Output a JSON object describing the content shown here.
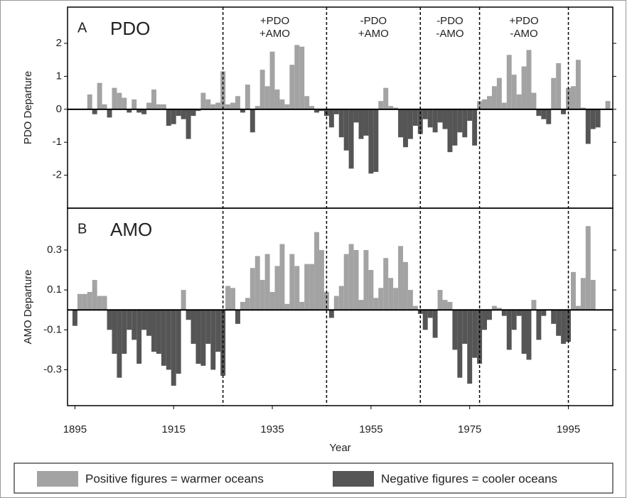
{
  "chart_data": [
    {
      "type": "bar",
      "panel_label": "A",
      "title": "PDO",
      "ylabel": "PDO Departure",
      "x_start": 1898,
      "values": [
        0.45,
        -0.15,
        0.8,
        0.15,
        -0.25,
        0.65,
        0.5,
        0.35,
        -0.1,
        0.3,
        -0.1,
        -0.15,
        0.2,
        0.6,
        0.15,
        0.15,
        -0.5,
        -0.45,
        -0.2,
        -0.3,
        -0.9,
        -0.2,
        -0.05,
        0.5,
        0.3,
        0.15,
        0.2,
        1.15,
        0.15,
        0.2,
        0.4,
        -0.1,
        0.75,
        -0.7,
        0.1,
        1.2,
        0.7,
        1.75,
        0.6,
        0.3,
        0.15,
        1.35,
        1.95,
        1.9,
        0.4,
        0.1,
        -0.1,
        -0.05,
        -0.2,
        -0.55,
        -0.15,
        -0.85,
        -1.25,
        -1.8,
        -0.4,
        -0.9,
        -0.8,
        -1.95,
        -1.9,
        0.25,
        0.65,
        0.1,
        0.05,
        -0.85,
        -1.15,
        -0.9,
        -0.5,
        -0.75,
        -0.3,
        -0.55,
        -0.7,
        -0.4,
        -0.6,
        -1.3,
        -1.1,
        -0.7,
        -0.85,
        -0.35,
        -1.1,
        0.25,
        0.3,
        0.4,
        0.7,
        0.95,
        0.2,
        1.65,
        1.05,
        0.45,
        1.3,
        1.8,
        0.5,
        -0.2,
        -0.3,
        -0.45,
        0.95,
        1.4,
        -0.15,
        0.65,
        0.7,
        1.5,
        0.05,
        -1.05,
        -0.6,
        -0.55,
        0.0,
        0.25
      ],
      "ylim": [
        -3,
        3.1
      ],
      "yticks": [
        -2,
        -1,
        0,
        1,
        2
      ]
    },
    {
      "type": "bar",
      "panel_label": "B",
      "title": "AMO",
      "ylabel": "AMO Departure",
      "x_start": 1895,
      "values": [
        -0.08,
        0.08,
        0.08,
        0.09,
        0.15,
        0.07,
        0.07,
        -0.1,
        -0.22,
        -0.34,
        -0.22,
        -0.1,
        -0.15,
        -0.27,
        -0.1,
        -0.13,
        -0.21,
        -0.22,
        -0.28,
        -0.3,
        -0.38,
        -0.32,
        0.1,
        -0.05,
        -0.17,
        -0.27,
        -0.28,
        -0.17,
        -0.3,
        -0.21,
        -0.33,
        0.12,
        0.11,
        -0.07,
        0.04,
        0.06,
        0.21,
        0.27,
        0.15,
        0.28,
        0.09,
        0.22,
        0.33,
        0.03,
        0.28,
        0.22,
        0.04,
        0.23,
        0.23,
        0.39,
        0.3,
        0.09,
        -0.04,
        0.07,
        0.12,
        0.28,
        0.33,
        0.3,
        0.05,
        0.3,
        0.2,
        0.06,
        0.11,
        0.26,
        0.16,
        0.11,
        0.32,
        0.24,
        0.1,
        0.02,
        -0.02,
        -0.1,
        -0.04,
        -0.14,
        0.1,
        0.05,
        0.04,
        -0.2,
        -0.34,
        -0.17,
        -0.37,
        -0.24,
        -0.27,
        -0.1,
        -0.05,
        0.02,
        0.01,
        -0.03,
        -0.2,
        -0.1,
        -0.03,
        -0.22,
        -0.25,
        0.05,
        -0.15,
        -0.03,
        0.0,
        -0.07,
        -0.13,
        -0.17,
        -0.16,
        0.19,
        0.02,
        0.16,
        0.42,
        0.15
      ],
      "ylim": [
        -0.48,
        0.51
      ],
      "yticks": [
        -0.3,
        -0.1,
        0.1,
        0.3
      ],
      "xlabel": "Year",
      "xticks": [
        1895,
        1915,
        1935,
        1955,
        1975,
        1995
      ]
    }
  ],
  "xlim": [
    1893.5,
    2004
  ],
  "regime_shifts": [
    1925,
    1946,
    1965,
    1977,
    1995
  ],
  "regime_labels": [
    [
      "+PDO",
      "+AMO"
    ],
    [
      "-PDO",
      "+AMO"
    ],
    [
      "-PDO",
      "-AMO"
    ],
    [
      "+PDO",
      "-AMO"
    ]
  ],
  "legend": [
    {
      "label": "Positive figures = warmer oceans",
      "color": "#a3a3a3"
    },
    {
      "label": "Negative figures = cooler oceans",
      "color": "#555555"
    }
  ]
}
